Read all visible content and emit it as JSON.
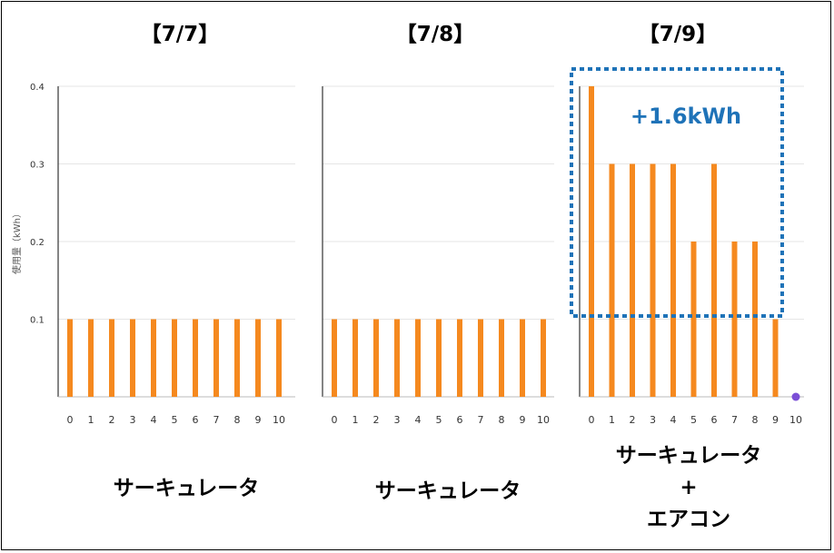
{
  "chart_data": [
    {
      "type": "bar",
      "title": "【7/7】",
      "ylabel": "使用量（kWh）",
      "categories": [
        "0",
        "1",
        "2",
        "3",
        "4",
        "5",
        "6",
        "7",
        "8",
        "9",
        "10"
      ],
      "values": [
        0.1,
        0.1,
        0.1,
        0.1,
        0.1,
        0.1,
        0.1,
        0.1,
        0.1,
        0.1,
        0.1
      ],
      "yticks": [
        "0.1",
        "0.2",
        "0.3",
        "0.4"
      ],
      "ylim": [
        0,
        0.4
      ],
      "grid": true,
      "caption": [
        "サーキュレータ"
      ]
    },
    {
      "type": "bar",
      "title": "【7/8】",
      "categories": [
        "0",
        "1",
        "2",
        "3",
        "4",
        "5",
        "6",
        "7",
        "8",
        "9",
        "10"
      ],
      "values": [
        0.1,
        0.1,
        0.1,
        0.1,
        0.1,
        0.1,
        0.1,
        0.1,
        0.1,
        0.1,
        0.1
      ],
      "ylim": [
        0,
        0.4
      ],
      "grid": true,
      "caption": [
        "サーキュレータ"
      ]
    },
    {
      "type": "bar",
      "title": "【7/9】",
      "categories": [
        "0",
        "1",
        "2",
        "3",
        "4",
        "5",
        "6",
        "7",
        "8",
        "9",
        "10"
      ],
      "values": [
        0.4,
        0.3,
        0.3,
        0.3,
        0.3,
        0.2,
        0.3,
        0.2,
        0.2,
        0.1,
        0
      ],
      "ylim": [
        0,
        0.4
      ],
      "grid": true,
      "annotation": "+1.6kWh",
      "caption": [
        "サーキュレータ",
        "+",
        "エアコン"
      ]
    }
  ],
  "colors": {
    "bar": "#f5891f",
    "marker": "#7b4fd6",
    "annotation_box": "#1f73b8",
    "grid": "#e6e6e6",
    "axis": "#333333"
  }
}
